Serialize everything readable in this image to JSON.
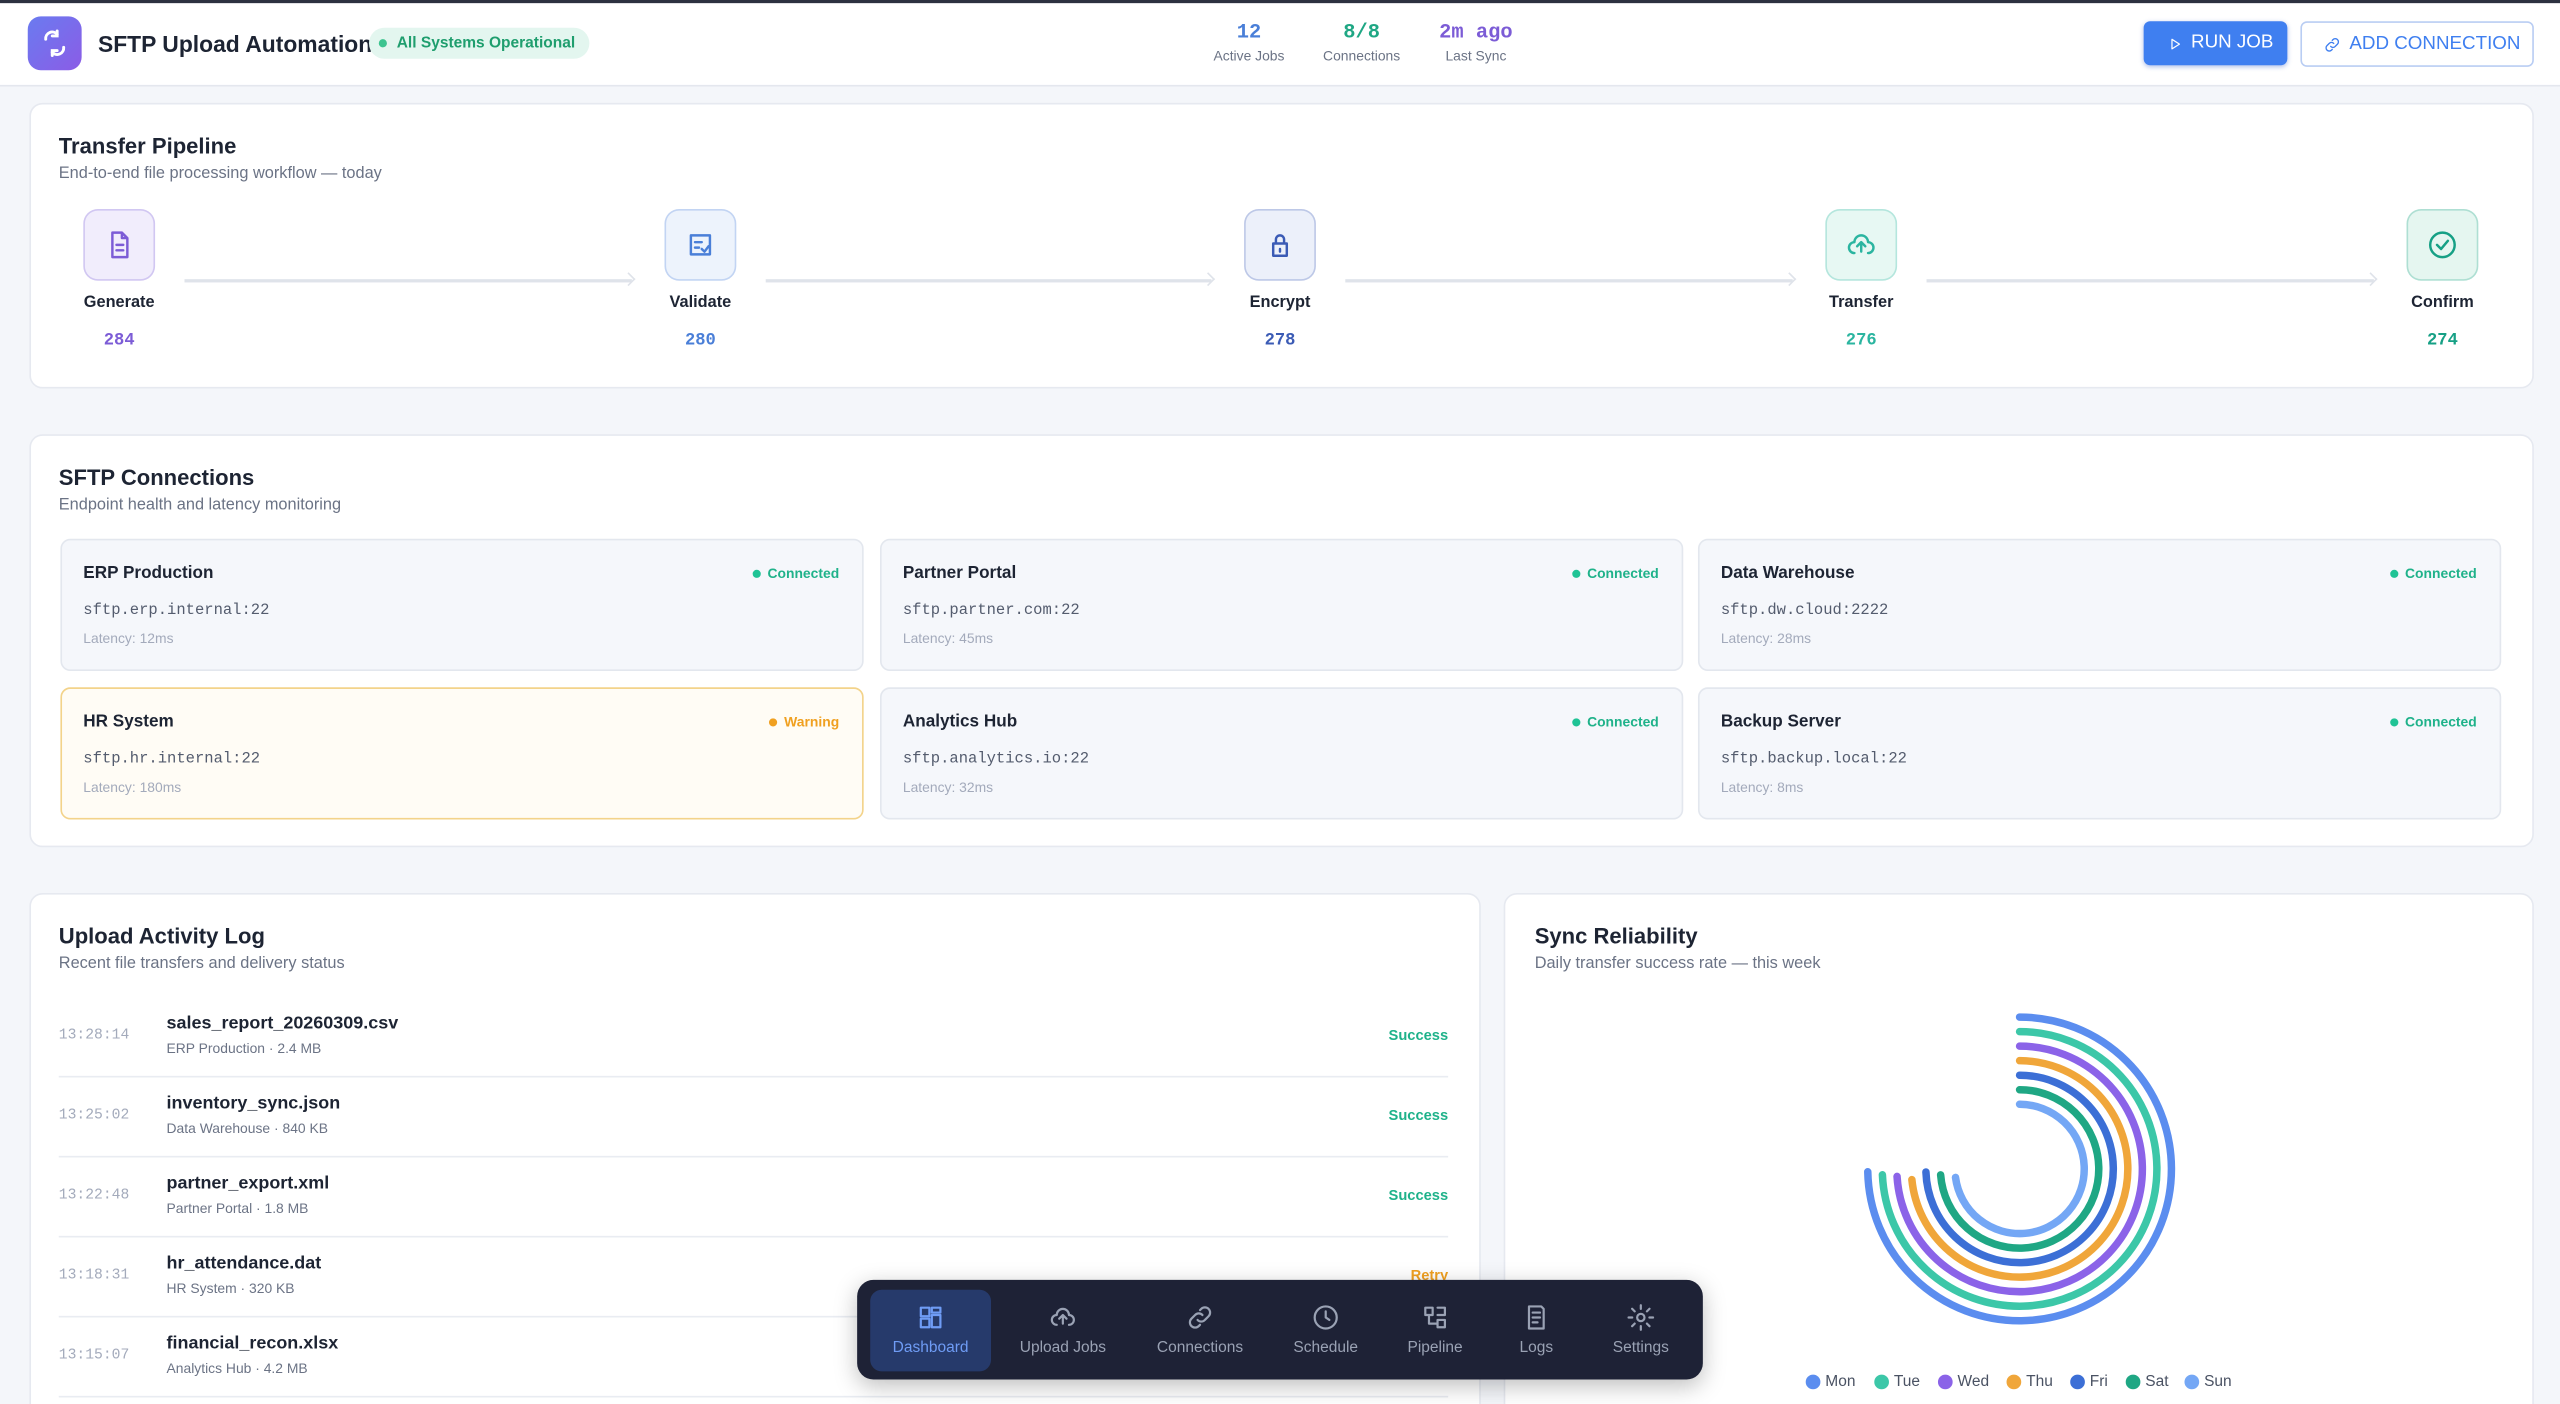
{
  "header": {
    "title": "SFTP Upload Automation",
    "status": "All Systems Operational",
    "stats": [
      {
        "value": "12",
        "label": "Active Jobs"
      },
      {
        "value": "8/8",
        "label": "Connections"
      },
      {
        "value": "2m ago",
        "label": "Last Sync"
      }
    ],
    "actions": [
      "RUN JOB",
      "ADD CONNECTION"
    ]
  },
  "pipeline": {
    "title": "Transfer Pipeline",
    "subtitle": "End-to-end file processing workflow — today",
    "stages": [
      {
        "label": "Generate",
        "count": 284
      },
      {
        "label": "Validate",
        "count": 280
      },
      {
        "label": "Encrypt",
        "count": 278
      },
      {
        "label": "Transfer",
        "count": 276
      },
      {
        "label": "Confirm",
        "count": 274
      }
    ]
  },
  "connections": {
    "title": "SFTP Connections",
    "subtitle": "Endpoint health and latency monitoring",
    "items": [
      {
        "name": "ERP Production",
        "status": "Connected",
        "host": "sftp.erp.internal:22",
        "latency": "Latency: 12ms"
      },
      {
        "name": "Partner Portal",
        "status": "Connected",
        "host": "sftp.partner.com:22",
        "latency": "Latency: 45ms"
      },
      {
        "name": "Data Warehouse",
        "status": "Connected",
        "host": "sftp.dw.cloud:2222",
        "latency": "Latency: 28ms"
      },
      {
        "name": "HR System",
        "status": "Warning",
        "host": "sftp.hr.internal:22",
        "latency": "Latency: 180ms"
      },
      {
        "name": "Analytics Hub",
        "status": "Connected",
        "host": "sftp.analytics.io:22",
        "latency": "Latency: 32ms"
      },
      {
        "name": "Backup Server",
        "status": "Connected",
        "host": "sftp.backup.local:22",
        "latency": "Latency: 8ms"
      }
    ]
  },
  "activity": {
    "title": "Upload Activity Log",
    "subtitle": "Recent file transfers and delivery status",
    "rows": [
      {
        "time": "13:28:14",
        "file": "sales_report_20260309.csv",
        "meta": "ERP Production · 2.4 MB",
        "status": "Success"
      },
      {
        "time": "13:25:02",
        "file": "inventory_sync.json",
        "meta": "Data Warehouse · 840 KB",
        "status": "Success"
      },
      {
        "time": "13:22:48",
        "file": "partner_export.xml",
        "meta": "Partner Portal · 1.8 MB",
        "status": "Success"
      },
      {
        "time": "13:18:31",
        "file": "hr_attendance.dat",
        "meta": "HR System · 320 KB",
        "status": "Retry"
      },
      {
        "time": "13:15:07",
        "file": "financial_recon.xlsx",
        "meta": "Analytics Hub · 4.2 MB"
      }
    ]
  },
  "chart_data": {
    "type": "radialBar",
    "title": "Sync Reliability",
    "subtitle": "Daily transfer success rate — this week",
    "categories": [
      "Mon",
      "Tue",
      "Wed",
      "Thu",
      "Fri",
      "Sat",
      "Sun"
    ],
    "values": [
      99.6,
      99.1,
      98.7,
      97.9,
      99.3,
      98.4,
      97.2
    ],
    "colors": [
      "#5b8def",
      "#3cc7a8",
      "#8b63e8",
      "#f0a63a",
      "#3c6fd6",
      "#1fa784",
      "#74a7f5"
    ],
    "ylim": [
      0,
      100
    ],
    "legend": "bottom"
  },
  "nav": [
    "Dashboard",
    "Upload Jobs",
    "Connections",
    "Schedule",
    "Pipeline",
    "Logs",
    "Settings"
  ]
}
